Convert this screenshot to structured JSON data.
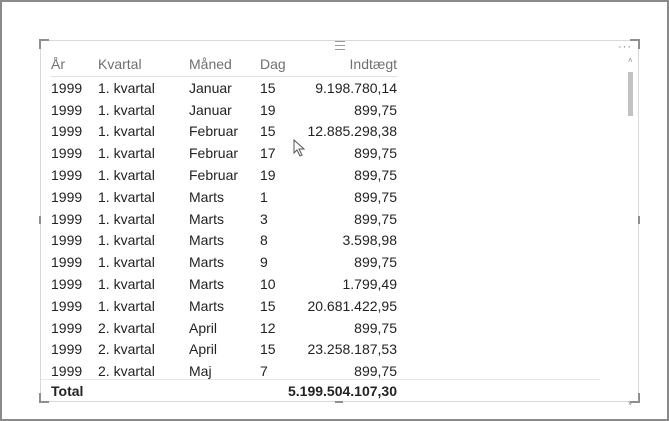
{
  "table": {
    "headers": [
      "År",
      "Kvartal",
      "Måned",
      "Dag",
      "Indtægt"
    ],
    "rows": [
      [
        "1999",
        "1. kvartal",
        "Januar",
        "15",
        "9.198.780,14"
      ],
      [
        "1999",
        "1. kvartal",
        "Januar",
        "19",
        "899,75"
      ],
      [
        "1999",
        "1. kvartal",
        "Februar",
        "15",
        "12.885.298,38"
      ],
      [
        "1999",
        "1. kvartal",
        "Februar",
        "17",
        "899,75"
      ],
      [
        "1999",
        "1. kvartal",
        "Februar",
        "19",
        "899,75"
      ],
      [
        "1999",
        "1. kvartal",
        "Marts",
        "1",
        "899,75"
      ],
      [
        "1999",
        "1. kvartal",
        "Marts",
        "3",
        "899,75"
      ],
      [
        "1999",
        "1. kvartal",
        "Marts",
        "8",
        "3.598,98"
      ],
      [
        "1999",
        "1. kvartal",
        "Marts",
        "9",
        "899,75"
      ],
      [
        "1999",
        "1. kvartal",
        "Marts",
        "10",
        "1.799,49"
      ],
      [
        "1999",
        "1. kvartal",
        "Marts",
        "15",
        "20.681.422,95"
      ],
      [
        "1999",
        "2. kvartal",
        "April",
        "12",
        "899,75"
      ],
      [
        "1999",
        "2. kvartal",
        "April",
        "15",
        "23.258.187,53"
      ],
      [
        "1999",
        "2. kvartal",
        "Maj",
        "7",
        "899,75"
      ]
    ],
    "total_label": "Total",
    "total_value": "5.199.504.107,30"
  },
  "visual": {
    "more_options_icon": "ellipsis-icon",
    "drag_grip_icon": "drag-grip-icon",
    "scroll_up_glyph": "˄",
    "scroll_down_glyph": "˅"
  },
  "colors": {
    "header_text": "#707070",
    "body_text": "#222222",
    "border": "#8a8a8a",
    "scroll_thumb": "#c2c2c2"
  }
}
